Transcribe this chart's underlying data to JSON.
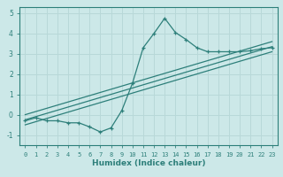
{
  "title": "",
  "xlabel": "Humidex (Indice chaleur)",
  "ylabel": "",
  "bg_color": "#cce8e8",
  "line_color": "#2d7f7a",
  "grid_color": "#b8d8d8",
  "xlim": [
    -0.5,
    23.5
  ],
  "ylim": [
    -1.5,
    5.3
  ],
  "yticks": [
    -1,
    0,
    1,
    2,
    3,
    4,
    5
  ],
  "xticks": [
    0,
    1,
    2,
    3,
    4,
    5,
    6,
    7,
    8,
    9,
    10,
    11,
    12,
    13,
    14,
    15,
    16,
    17,
    18,
    19,
    20,
    21,
    22,
    23
  ],
  "curve_x": [
    0,
    1,
    2,
    3,
    4,
    5,
    6,
    7,
    8,
    9,
    10,
    11,
    12,
    13,
    14,
    15,
    16,
    17,
    18,
    19,
    20,
    21,
    22,
    23
  ],
  "curve_y": [
    -0.3,
    -0.15,
    -0.3,
    -0.3,
    -0.4,
    -0.4,
    -0.6,
    -0.85,
    -0.65,
    0.2,
    1.55,
    3.3,
    4.0,
    4.75,
    4.05,
    3.7,
    3.3,
    3.1,
    3.1,
    3.1,
    3.1,
    3.15,
    3.25,
    3.3
  ],
  "line1_x": [
    0,
    23
  ],
  "line1_y": [
    -0.25,
    3.35
  ],
  "line2_x": [
    0,
    23
  ],
  "line2_y": [
    -0.5,
    3.1
  ],
  "line3_x": [
    0,
    23
  ],
  "line3_y": [
    0.0,
    3.6
  ]
}
